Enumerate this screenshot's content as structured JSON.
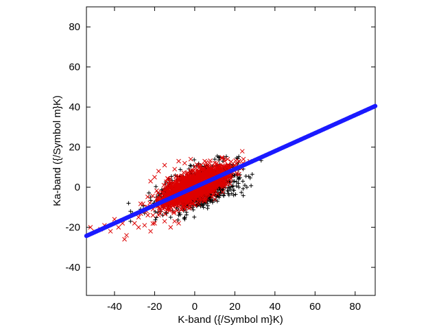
{
  "chart_data": {
    "type": "scatter",
    "title": "",
    "xlabel": "K-band ({/Symbol m}K)",
    "ylabel": "Ka-band ({/Symbol m}K)",
    "xlim": [
      -54,
      90
    ],
    "ylim": [
      -54,
      90
    ],
    "xticks": [
      -40,
      -20,
      0,
      20,
      40,
      60,
      80
    ],
    "yticks": [
      -40,
      -20,
      0,
      20,
      40,
      60,
      80
    ],
    "grid": false,
    "legend": "none",
    "series": [
      {
        "marker": "plus",
        "color": "#000000",
        "distribution": {
          "count": 1100,
          "x_mean": 2,
          "x_sd": 9,
          "slope": 0.3,
          "intercept": -1.0,
          "y_resid_sd": 4.5
        },
        "points": [
          [
            -32,
            -12
          ],
          [
            -31,
            -13
          ],
          [
            -33,
            -8
          ],
          [
            -27,
            -11
          ],
          [
            -12,
            -15
          ],
          [
            -8,
            -14
          ],
          [
            -5,
            -16
          ],
          [
            -14,
            -13
          ],
          [
            -16,
            -14
          ],
          [
            24,
            3
          ],
          [
            22,
            0
          ],
          [
            25,
            1
          ],
          [
            20,
            6
          ],
          [
            18,
            9
          ],
          [
            10,
            14
          ],
          [
            12,
            15
          ],
          [
            14,
            13
          ],
          [
            -22,
            -5
          ],
          [
            -20,
            -8
          ],
          [
            -25,
            -13
          ],
          [
            -32,
            -17
          ],
          [
            -1,
            -10
          ],
          [
            6,
            -8
          ],
          [
            26,
            0
          ]
        ]
      },
      {
        "marker": "x",
        "color": "#dd0000",
        "distribution": {
          "count": 1800,
          "x_mean": 0,
          "x_sd": 8,
          "slope": 0.4,
          "intercept": 0.5,
          "y_resid_sd": 3.5
        },
        "points": [
          [
            -52,
            -20
          ],
          [
            -50,
            -22
          ],
          [
            -47,
            -21
          ],
          [
            -45,
            -19
          ],
          [
            -42,
            -22
          ],
          [
            -38,
            -20
          ],
          [
            -36,
            -18
          ],
          [
            -35,
            -26
          ],
          [
            -34,
            -24
          ],
          [
            -40,
            -16
          ],
          [
            -30,
            -18
          ],
          [
            -28,
            -20
          ],
          [
            -25,
            -19
          ],
          [
            -22,
            -22
          ],
          [
            -20,
            -18
          ],
          [
            -15,
            -17
          ],
          [
            -10,
            -17
          ],
          [
            -8,
            -18
          ],
          [
            -18,
            -14
          ],
          [
            -12,
            -20
          ],
          [
            -5,
            -11
          ],
          [
            0,
            -9
          ],
          [
            5,
            -7
          ],
          [
            10,
            -6
          ],
          [
            -24,
            -12
          ],
          [
            -28,
            -15
          ],
          [
            -15,
            11
          ],
          [
            -10,
            9
          ],
          [
            -5,
            12
          ],
          [
            0,
            10
          ],
          [
            5,
            13
          ],
          [
            15,
            13
          ],
          [
            -20,
            5
          ],
          [
            -18,
            8
          ],
          [
            -22,
            3
          ],
          [
            3,
            11
          ],
          [
            8,
            9
          ],
          [
            -2,
            14
          ],
          [
            -8,
            13
          ]
        ]
      },
      {
        "marker": "filled-circle",
        "color": "#1a1aff",
        "fit": {
          "slope": 0.45,
          "intercept": 0.0,
          "x_min": -54,
          "x_max": 90,
          "count": 240
        }
      }
    ]
  }
}
